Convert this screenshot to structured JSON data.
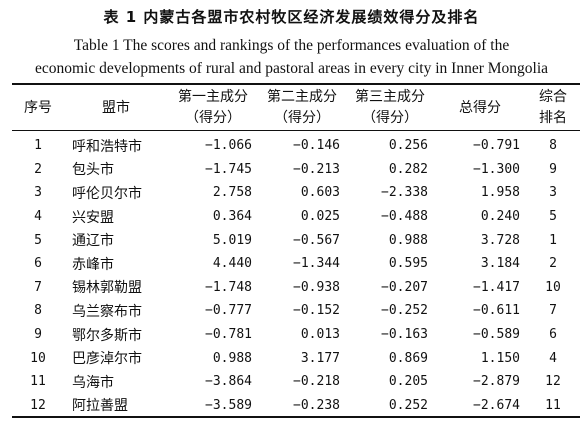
{
  "caption": {
    "cn": "表 1   内蒙古各盟市农村牧区经济发展绩效得分及排名",
    "en_line1": "Table 1 The scores and rankings of the performances evaluation of the",
    "en_line2": "economic developments of rural and pastoral areas in every city in Inner Mongolia"
  },
  "columns": [
    {
      "line1": "序号",
      "line2": ""
    },
    {
      "line1": "盟市",
      "line2": ""
    },
    {
      "line1": "第一主成分",
      "line2": "（得分）"
    },
    {
      "line1": "第二主成分",
      "line2": "（得分）"
    },
    {
      "line1": "第三主成分",
      "line2": "（得分）"
    },
    {
      "line1": "总得分",
      "line2": ""
    },
    {
      "line1": "综合",
      "line2": "排名"
    }
  ],
  "rows": [
    {
      "no": "1",
      "city": "呼和浩特市",
      "pc1": "−1.066",
      "pc2": "−0.146",
      "pc3": "0.256",
      "total": "−0.791",
      "rank": "8"
    },
    {
      "no": "2",
      "city": "包头市",
      "pc1": "−1.745",
      "pc2": "−0.213",
      "pc3": "0.282",
      "total": "−1.300",
      "rank": "9"
    },
    {
      "no": "3",
      "city": "呼伦贝尔市",
      "pc1": "2.758",
      "pc2": "0.603",
      "pc3": "−2.338",
      "total": "1.958",
      "rank": "3"
    },
    {
      "no": "4",
      "city": "兴安盟",
      "pc1": "0.364",
      "pc2": "0.025",
      "pc3": "−0.488",
      "total": "0.240",
      "rank": "5"
    },
    {
      "no": "5",
      "city": "通辽市",
      "pc1": "5.019",
      "pc2": "−0.567",
      "pc3": "0.988",
      "total": "3.728",
      "rank": "1"
    },
    {
      "no": "6",
      "city": "赤峰市",
      "pc1": "4.440",
      "pc2": "−1.344",
      "pc3": "0.595",
      "total": "3.184",
      "rank": "2"
    },
    {
      "no": "7",
      "city": "锡林郭勒盟",
      "pc1": "−1.748",
      "pc2": "−0.938",
      "pc3": "−0.207",
      "total": "−1.417",
      "rank": "10"
    },
    {
      "no": "8",
      "city": "乌兰察布市",
      "pc1": "−0.777",
      "pc2": "−0.152",
      "pc3": "−0.252",
      "total": "−0.611",
      "rank": "7"
    },
    {
      "no": "9",
      "city": "鄂尔多斯市",
      "pc1": "−0.781",
      "pc2": "0.013",
      "pc3": "−0.163",
      "total": "−0.589",
      "rank": "6"
    },
    {
      "no": "10",
      "city": "巴彦淖尔市",
      "pc1": "0.988",
      "pc2": "3.177",
      "pc3": "0.869",
      "total": "1.150",
      "rank": "4"
    },
    {
      "no": "11",
      "city": "乌海市",
      "pc1": "−3.864",
      "pc2": "−0.218",
      "pc3": "0.205",
      "total": "−2.879",
      "rank": "12"
    },
    {
      "no": "12",
      "city": "阿拉善盟",
      "pc1": "−3.589",
      "pc2": "−0.238",
      "pc3": "0.252",
      "total": "−2.674",
      "rank": "11"
    }
  ]
}
